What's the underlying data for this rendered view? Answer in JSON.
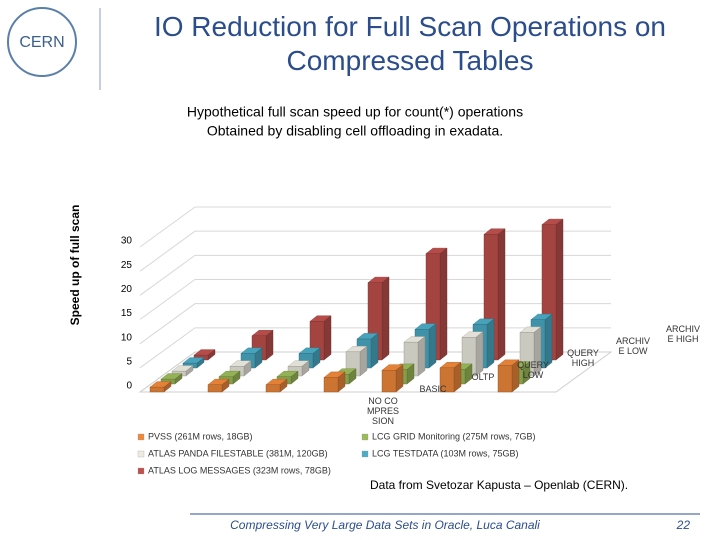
{
  "slide": {
    "title": "IO Reduction for Full Scan Operations on Compressed Tables",
    "logo": "CERN",
    "source": "Data from Svetozar Kapusta – Openlab (CERN).",
    "footer": "Compressing Very Large Data Sets in Oracle, Luca Canali",
    "page": "22"
  },
  "chart_data": {
    "type": "bar3d",
    "title": "Hypothetical full scan speed up for count(*) operations",
    "subtitle": "Obtained by disabling cell offloading in exadata.",
    "y_label": "Speed up of full scan",
    "categories": [
      "NO COMPRESSION",
      "BASIC",
      "OLTP",
      "QUERY LOW",
      "QUERY HIGH",
      "ARCHIVE LOW",
      "ARCHIVE HIGH"
    ],
    "series": [
      {
        "name": "PVSS (261M rows, 18GB)",
        "color": "#f0883a",
        "values": [
          1,
          1.5,
          1.5,
          3,
          4.5,
          5,
          5.5
        ]
      },
      {
        "name": "LCG GRID Monitoring (275M rows, 7GB)",
        "color": "#9bbb59",
        "values": [
          1,
          1.5,
          1.5,
          2,
          3,
          3,
          3.5
        ]
      },
      {
        "name": "ATLAS PANDA FILESTABLE (381M, 120GB)",
        "color": "#eeece1",
        "values": [
          1,
          2,
          2,
          5,
          7,
          8,
          9
        ]
      },
      {
        "name": "LCG TESTDATA (103M rows, 75GB)",
        "color": "#4bacc6",
        "values": [
          1,
          3,
          3,
          6,
          8,
          9,
          10
        ]
      },
      {
        "name": "ATLAS LOG MESSAGES (323M rows, 78GB)",
        "color": "#c0504d",
        "values": [
          1,
          5,
          8,
          16,
          22,
          26,
          28
        ]
      }
    ],
    "ylim": [
      0,
      30
    ],
    "yticks": [
      0,
      5,
      10,
      15,
      20,
      25,
      30
    ],
    "grid": true
  }
}
